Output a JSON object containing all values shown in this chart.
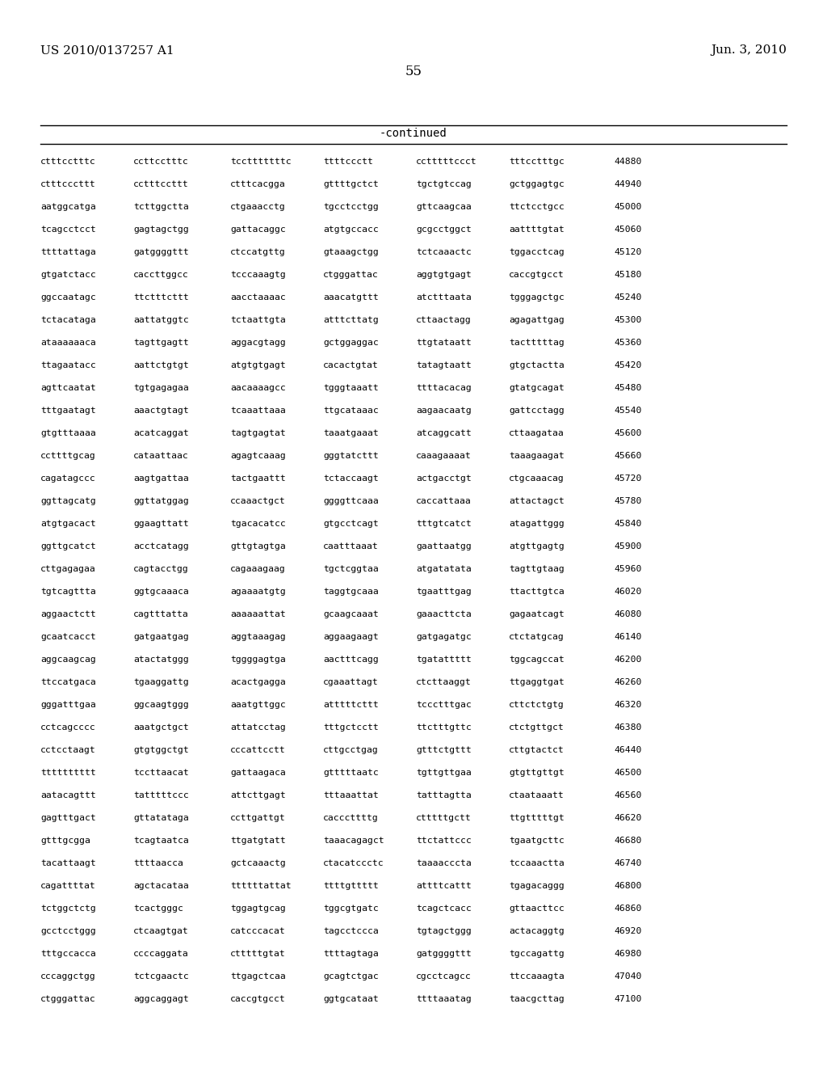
{
  "header_left": "US 2010/0137257 A1",
  "header_right": "Jun. 3, 2010",
  "page_number": "55",
  "continued_label": "-continued",
  "background_color": "#ffffff",
  "text_color": "#000000",
  "sequence_lines": [
    [
      "ctttcctttc",
      "ccttcctttc",
      "tcctttttttc",
      "ttttccctt",
      "cctttttccct",
      "tttcctttgc",
      "44880"
    ],
    [
      "ctttcccttt",
      "cctttccttt",
      "ctttcacgga",
      "gttttgctct",
      "tgctgtccag",
      "gctggagtgc",
      "44940"
    ],
    [
      "aatggcatga",
      "tcttggctta",
      "ctgaaacctg",
      "tgcctcctgg",
      "gttcaagcaa",
      "ttctcctgcc",
      "45000"
    ],
    [
      "tcagcctcct",
      "gagtagctgg",
      "gattacaggc",
      "atgtgccacc",
      "gcgcctggct",
      "aattttgtat",
      "45060"
    ],
    [
      "ttttattaga",
      "gatggggttt",
      "ctccatgttg",
      "gtaaagctgg",
      "tctcaaactc",
      "tggacctcag",
      "45120"
    ],
    [
      "gtgatctacc",
      "caccttggcc",
      "tcccaaagtg",
      "ctgggattac",
      "aggtgtgagt",
      "caccgtgcct",
      "45180"
    ],
    [
      "ggccaatagc",
      "ttctttcttt",
      "aacctaaaac",
      "aaacatgttt",
      "atctttaata",
      "tgggagctgc",
      "45240"
    ],
    [
      "tctacataga",
      "aattatggtc",
      "tctaattgta",
      "atttcttatg",
      "cttaactagg",
      "agagattgag",
      "45300"
    ],
    [
      "ataaaaaaca",
      "tagttgagtt",
      "aggacgtagg",
      "gctggaggac",
      "ttgtataatt",
      "tactttttag",
      "45360"
    ],
    [
      "ttagaatacc",
      "aattctgtgt",
      "atgtgtgagt",
      "cacactgtat",
      "tatagtaatt",
      "gtgctactta",
      "45420"
    ],
    [
      "agttcaatat",
      "tgtgagagaa",
      "aacaaaagcc",
      "tgggtaaatt",
      "ttttacacag",
      "gtatgcagat",
      "45480"
    ],
    [
      "tttgaatagt",
      "aaactgtagt",
      "tcaaattaaa",
      "ttgcataaac",
      "aagaacaatg",
      "gattcctagg",
      "45540"
    ],
    [
      "gtgtttaaaa",
      "acatcaggat",
      "tagtgagtat",
      "taaatgaaat",
      "atcaggcatt",
      "cttaagataa",
      "45600"
    ],
    [
      "ccttttgcag",
      "cataattaac",
      "agagtcaaag",
      "gggtatcttt",
      "caaagaaaat",
      "taaagaagat",
      "45660"
    ],
    [
      "cagatagccc",
      "aagtgattaa",
      "tactgaattt",
      "tctaccaagt",
      "actgacctgt",
      "ctgcaaacag",
      "45720"
    ],
    [
      "ggttagcatg",
      "ggttatggag",
      "ccaaactgct",
      "ggggttcaaa",
      "caccattaaa",
      "attactagct",
      "45780"
    ],
    [
      "atgtgacact",
      "ggaagttatt",
      "tgacacatcc",
      "gtgcctcagt",
      "tttgtcatct",
      "atagattggg",
      "45840"
    ],
    [
      "ggttgcatct",
      "acctcatagg",
      "gttgtagtga",
      "caatttaaat",
      "gaattaatgg",
      "atgttgagtg",
      "45900"
    ],
    [
      "cttgagagaa",
      "cagtacctgg",
      "cagaaagaag",
      "tgctcggtaa",
      "atgatatata",
      "tagttgtaag",
      "45960"
    ],
    [
      "tgtcagttta",
      "ggtgcaaaca",
      "agaaaatgtg",
      "taggtgcaaa",
      "tgaatttgag",
      "ttacttgtca",
      "46020"
    ],
    [
      "aggaactctt",
      "cagtttatta",
      "aaaaaattat",
      "gcaagcaaat",
      "gaaacttcta",
      "gagaatcagt",
      "46080"
    ],
    [
      "gcaatcacct",
      "gatgaatgag",
      "aggtaaagag",
      "aggaagaagt",
      "gatgagatgc",
      "ctctatgcag",
      "46140"
    ],
    [
      "aggcaagcag",
      "atactatggg",
      "tggggagtga",
      "aactttcagg",
      "tgatattttt",
      "tggcagccat",
      "46200"
    ],
    [
      "ttccatgaca",
      "tgaaggattg",
      "acactgagga",
      "cgaaattagt",
      "ctcttaaggt",
      "ttgaggtgat",
      "46260"
    ],
    [
      "gggatttgaa",
      "ggcaagtggg",
      "aaatgttggc",
      "atttttcttt",
      "tccctttgac",
      "cttctctgtg",
      "46320"
    ],
    [
      "cctcagcccc",
      "aaatgctgct",
      "attatcctag",
      "tttgctcctt",
      "ttctttgttc",
      "ctctgttgct",
      "46380"
    ],
    [
      "cctcctaagt",
      "gtgtggctgt",
      "cccattcctt",
      "cttgcctgag",
      "gtttctgttt",
      "cttgtactct",
      "46440"
    ],
    [
      "tttttttttt",
      "tccttaacat",
      "gattaagaca",
      "gtttttaatc",
      "tgttgttgaa",
      "gtgttgttgt",
      "46500"
    ],
    [
      "aatacagttt",
      "tatttttccc",
      "attcttgagt",
      "tttaaattat",
      "tatttagtta",
      "ctaataaatt",
      "46560"
    ],
    [
      "gagtttgact",
      "gttatataga",
      "ccttgattgt",
      "cacccttttg",
      "ctttttgctt",
      "ttgtttttgt",
      "46620"
    ],
    [
      "gtttgcgga",
      "tcagtaatca",
      "ttgatgtatt",
      "taaacagagct",
      "ttctattccc",
      "tgaatgcttc",
      "46680"
    ],
    [
      "tacattaagt",
      "ttttaacca",
      "gctcaaactg",
      "ctacatccctc",
      "taaaacccta",
      "tccaaactta",
      "46740"
    ],
    [
      "cagattttat",
      "agctacataa",
      "ttttttattat",
      "ttttgttttt",
      "attttcattt",
      "tgagacaggg",
      "46800"
    ],
    [
      "tctggctctg",
      "tcactgggc",
      "tggagtgcag",
      "tggcgtgatc",
      "tcagctcacc",
      "gttaacttcc",
      "46860"
    ],
    [
      "gcctcctggg",
      "ctcaagtgat",
      "catcccacat",
      "tagcctccca",
      "tgtagctggg",
      "actacaggtg",
      "46920"
    ],
    [
      "tttgccacca",
      "ccccaggata",
      "ctttttgtat",
      "ttttagtaga",
      "gatggggttt",
      "tgccagattg",
      "46980"
    ],
    [
      "cccaggctgg",
      "tctcgaactc",
      "ttgagctcaa",
      "gcagtctgac",
      "cgcctcagcc",
      "ttccaaagta",
      "47040"
    ],
    [
      "ctgggattac",
      "aggcaggagt",
      "caccgtgcct",
      "ggtgcataat",
      "ttttaaatag",
      "taacgcttag",
      "47100"
    ]
  ]
}
